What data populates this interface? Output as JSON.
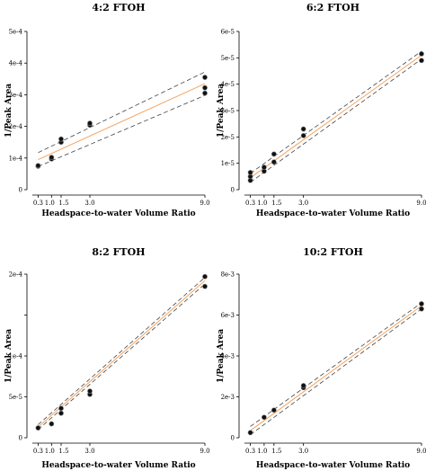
{
  "chart_data": [
    {
      "type": "scatter",
      "title": "4:2 FTOH",
      "xlabel": "Headspace-to-water Volume Ratio",
      "ylabel": "1/Peak Area",
      "xlim": [
        0,
        9
      ],
      "ylim": [
        0,
        0.0005
      ],
      "xticks": [
        0.3,
        1.0,
        1.5,
        3.0,
        9.0
      ],
      "xtick_labels": [
        "0.3",
        "1.0",
        "1.5",
        "3.0",
        "9.0"
      ],
      "yticks": [
        0,
        0.0001,
        0.0002,
        0.0003,
        0.0004,
        0.0005
      ],
      "ytick_labels": [
        "0",
        "1e-4",
        "2e-4",
        "3e-4",
        "4e-4",
        "5e-4"
      ],
      "points": {
        "x": [
          0.3,
          0.3,
          1.0,
          1.0,
          1.5,
          1.5,
          3.0,
          3.0,
          9.0,
          9.0,
          9.0
        ],
        "y": [
          7.4e-05,
          7.6e-05,
          9.7e-05,
          0.000102,
          0.00015,
          0.00016,
          0.000204,
          0.00021,
          0.000305,
          0.000322,
          0.000355
        ]
      },
      "fit": {
        "x": [
          0.3,
          9.0
        ],
        "y": [
          9.5e-05,
          0.000335
        ]
      },
      "ci_upper": {
        "x": [
          0.3,
          9.0
        ],
        "y": [
          0.000117,
          0.000372
        ]
      },
      "ci_lower": {
        "x": [
          0.3,
          9.0
        ],
        "y": [
          7.3e-05,
          0.000298
        ]
      }
    },
    {
      "type": "scatter",
      "title": "6:2 FTOH",
      "xlabel": "Headspace-to-water Volume Ratio",
      "ylabel": "1/Peak Area",
      "xlim": [
        0,
        9
      ],
      "ylim": [
        0,
        6e-05
      ],
      "xticks": [
        0.3,
        1.0,
        1.5,
        3.0,
        9.0
      ],
      "xtick_labels": [
        "0.3",
        "1.0",
        "1.5",
        "3.0",
        "9.0"
      ],
      "yticks": [
        0,
        1e-05,
        2e-05,
        3e-05,
        4e-05,
        5e-05,
        6e-05
      ],
      "ytick_labels": [
        "0",
        "1e-5",
        "2e-5",
        "3e-5",
        "4e-5",
        "5e-5",
        "6e-5"
      ],
      "points": {
        "x": [
          0.3,
          0.3,
          0.3,
          1.0,
          1.0,
          1.5,
          1.5,
          3.0,
          3.0,
          9.0,
          9.0
        ],
        "y": [
          3.5e-06,
          5e-06,
          6.5e-06,
          7e-06,
          8.5e-06,
          1.05e-05,
          1.35e-05,
          2.05e-05,
          2.3e-05,
          4.9e-05,
          5.15e-05
        ]
      },
      "fit": {
        "x": [
          0.3,
          9.0
        ],
        "y": [
          4.5e-06,
          5.1e-05
        ]
      },
      "ci_upper": {
        "x": [
          0.3,
          9.0
        ],
        "y": [
          6.2e-06,
          5.25e-05
        ]
      },
      "ci_lower": {
        "x": [
          0.3,
          9.0
        ],
        "y": [
          2.8e-06,
          4.95e-05
        ]
      }
    },
    {
      "type": "scatter",
      "title": "8:2 FTOH",
      "xlabel": "Headspace-to-water Volume Ratio",
      "ylabel": "1/Peak Area",
      "xlim": [
        0,
        9
      ],
      "ylim": [
        0,
        0.0002
      ],
      "xticks": [
        0.3,
        1.0,
        1.5,
        3.0,
        9.0
      ],
      "xtick_labels": [
        "0.3",
        "1.0",
        "1.5",
        "3.0",
        "9.0"
      ],
      "yticks": [
        0,
        5e-05,
        0.0001,
        0.00015,
        0.0002
      ],
      "ytick_labels": [
        "0",
        "5e-5",
        "1e-4",
        "",
        "2e-4"
      ],
      "points": {
        "x": [
          0.3,
          1.0,
          1.5,
          1.5,
          3.0,
          3.0,
          9.0,
          9.0
        ],
        "y": [
          1.2e-05,
          1.7e-05,
          3e-05,
          3.6e-05,
          5.3e-05,
          5.7e-05,
          0.000185,
          0.000197
        ]
      },
      "fit": {
        "x": [
          0.3,
          9.0
        ],
        "y": [
          1.3e-05,
          0.000192
        ]
      },
      "ci_upper": {
        "x": [
          0.3,
          9.0
        ],
        "y": [
          1.6e-05,
          0.000196
        ]
      },
      "ci_lower": {
        "x": [
          0.3,
          9.0
        ],
        "y": [
          1e-05,
          0.000188
        ]
      }
    },
    {
      "type": "scatter",
      "title": "10:2 FTOH",
      "xlabel": "Headspace-to-water Volume Ratio",
      "ylabel": "1/Peak Area",
      "xlim": [
        0,
        9
      ],
      "ylim": [
        0,
        0.008
      ],
      "xticks": [
        0.3,
        1.0,
        1.5,
        3.0,
        9.0
      ],
      "xtick_labels": [
        "0.3",
        "1.0",
        "1.5",
        "3.0",
        "9.0"
      ],
      "yticks": [
        0,
        0.002,
        0.004,
        0.006,
        0.008
      ],
      "ytick_labels": [
        "0",
        "2e-3",
        "4e-3",
        "6e-3",
        "8e-3"
      ],
      "points": {
        "x": [
          0.3,
          1.0,
          1.5,
          3.0,
          3.0,
          9.0,
          9.0
        ],
        "y": [
          0.00025,
          0.001,
          0.00135,
          0.00245,
          0.00255,
          0.0063,
          0.00655
        ]
      },
      "fit": {
        "x": [
          0.3,
          9.0
        ],
        "y": [
          0.00035,
          0.00645
        ]
      },
      "ci_upper": {
        "x": [
          0.3,
          9.0
        ],
        "y": [
          0.00055,
          0.0066
        ]
      },
      "ci_lower": {
        "x": [
          0.3,
          9.0
        ],
        "y": [
          0.00015,
          0.0063
        ]
      }
    }
  ]
}
